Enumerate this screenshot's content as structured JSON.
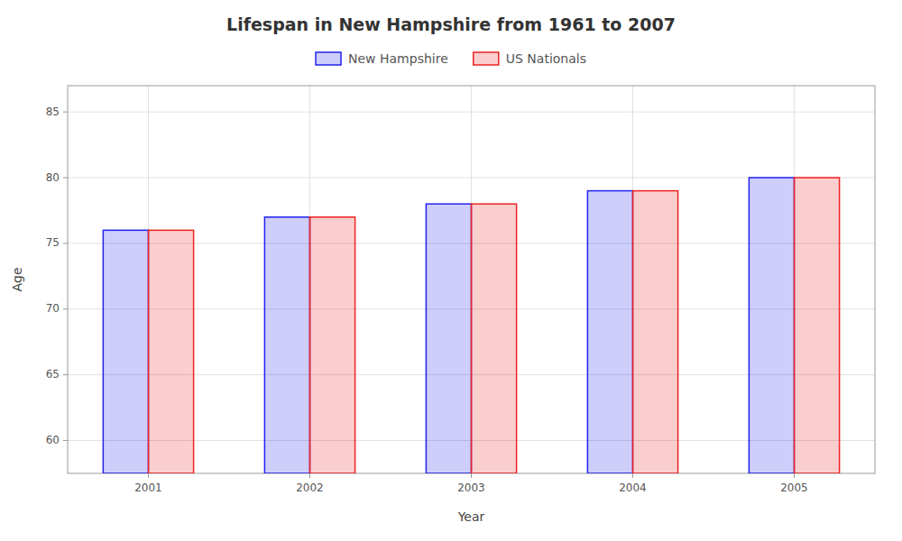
{
  "chart_data": {
    "type": "bar",
    "title": "Lifespan in New Hampshire from 1961 to 2007",
    "x_label": "Year",
    "y_label": "Age",
    "categories": [
      "2001",
      "2002",
      "2003",
      "2004",
      "2005"
    ],
    "series": [
      {
        "name": "New Hampshire",
        "color": "#2222ee",
        "values": [
          76,
          77,
          78,
          79,
          80
        ]
      },
      {
        "name": "US Nationals",
        "color": "#ee2222",
        "values": [
          76,
          77,
          78,
          79,
          80
        ]
      }
    ],
    "ylim": [
      57.5,
      87
    ],
    "yticks": [
      60,
      65,
      70,
      75,
      80,
      85
    ],
    "grid": true,
    "legend": "top"
  }
}
